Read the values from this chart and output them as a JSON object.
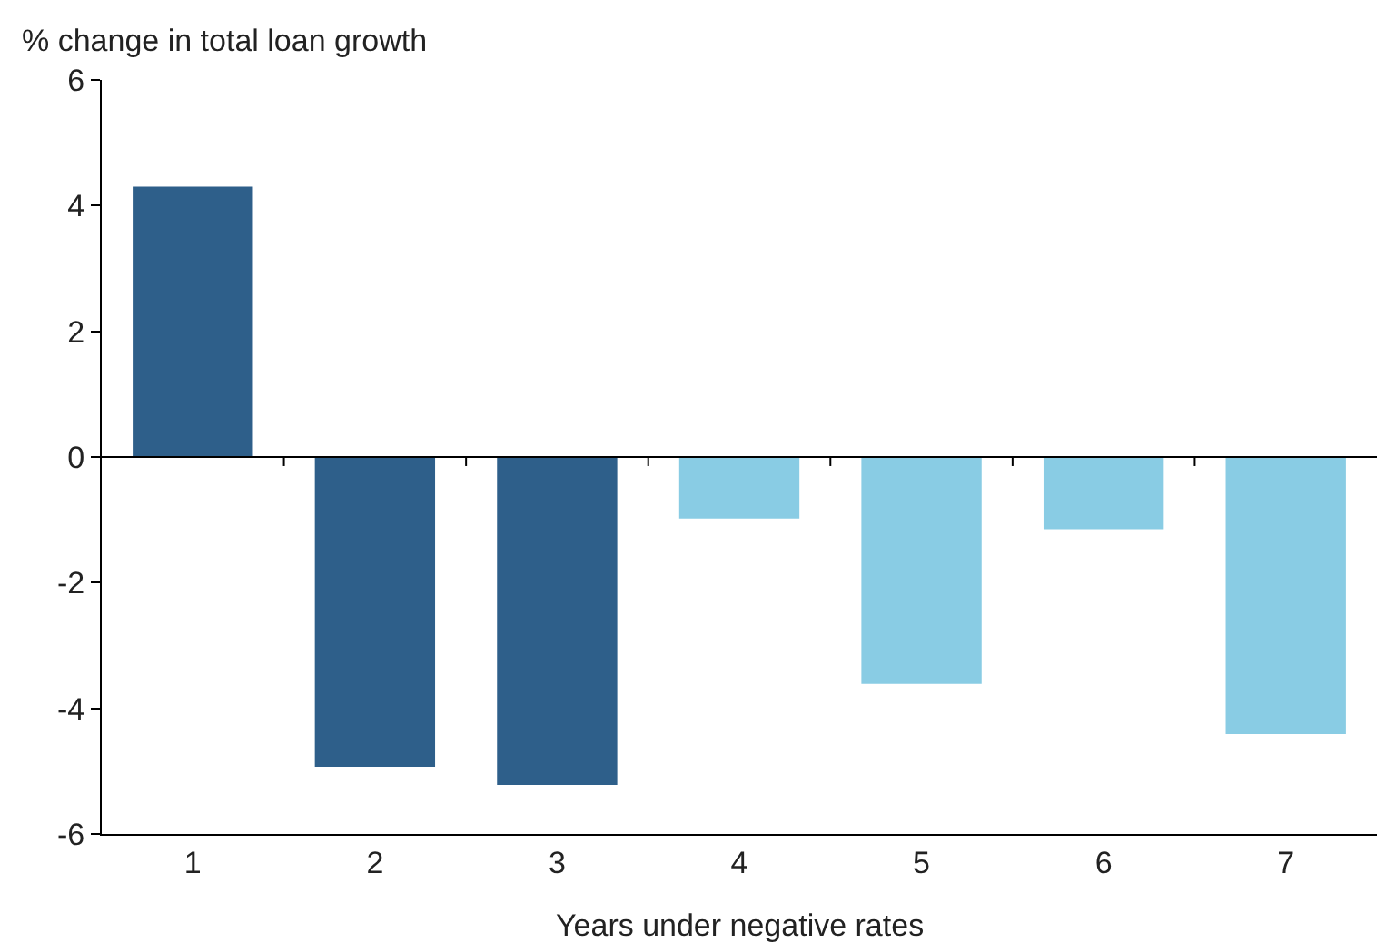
{
  "chart_data": {
    "type": "bar",
    "ylabel": "% change in total loan growth",
    "xlabel": "Years under negative rates",
    "categories": [
      "1",
      "2",
      "3",
      "4",
      "5",
      "6",
      "7"
    ],
    "values": [
      4.3,
      -4.93,
      -5.22,
      -0.98,
      -3.61,
      -1.15,
      -4.41
    ],
    "colors": [
      "#2e5f8a",
      "#2e5f8a",
      "#2e5f8a",
      "#89cce4",
      "#89cce4",
      "#89cce4",
      "#89cce4"
    ],
    "ylim": [
      -6,
      6
    ],
    "yticks": [
      -6,
      -4,
      -2,
      0,
      2,
      4,
      6
    ],
    "ref_lines": [
      {
        "axis": "y",
        "value": 0,
        "color": "#000000"
      }
    ]
  }
}
